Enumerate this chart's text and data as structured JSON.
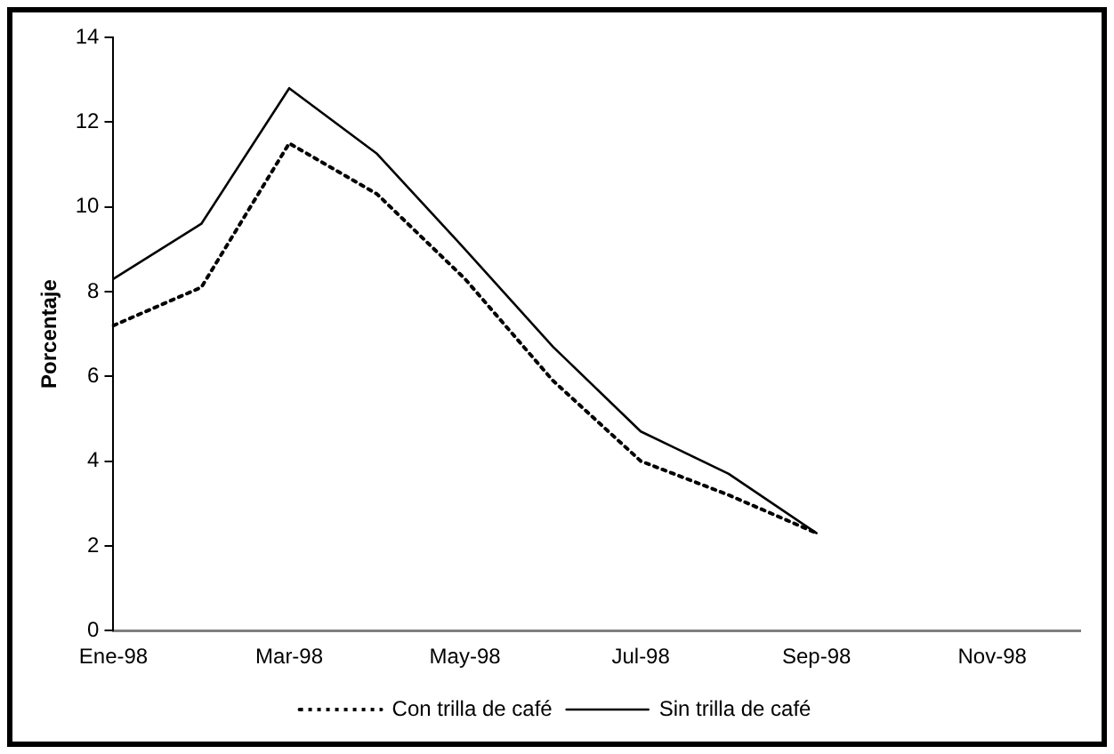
{
  "chart_data": {
    "type": "line",
    "ylabel": "Porcentaje",
    "categories": [
      "Ene-98",
      null,
      "Mar-98",
      null,
      "May-98",
      null,
      "Jul-98",
      null,
      "Sep-98",
      null,
      "Nov-98",
      null
    ],
    "series": [
      {
        "name": "Con trilla de café",
        "color": "#000000",
        "line_style": "dotted",
        "values": [
          7.2,
          8.1,
          11.5,
          10.3,
          8.3,
          5.9,
          4.0,
          3.2,
          2.3,
          null,
          null,
          null
        ]
      },
      {
        "name": "Sin trilla de café",
        "color": "#000000",
        "line_style": "solid",
        "values": [
          8.3,
          9.6,
          12.8,
          11.25,
          9.0,
          6.7,
          4.7,
          3.7,
          2.3,
          null,
          null,
          null
        ]
      }
    ],
    "ylim": [
      0,
      14
    ],
    "yticks": [
      0,
      2,
      4,
      6,
      8,
      10,
      12,
      14
    ],
    "grid": false,
    "legend": "bottom",
    "marker": "none"
  }
}
